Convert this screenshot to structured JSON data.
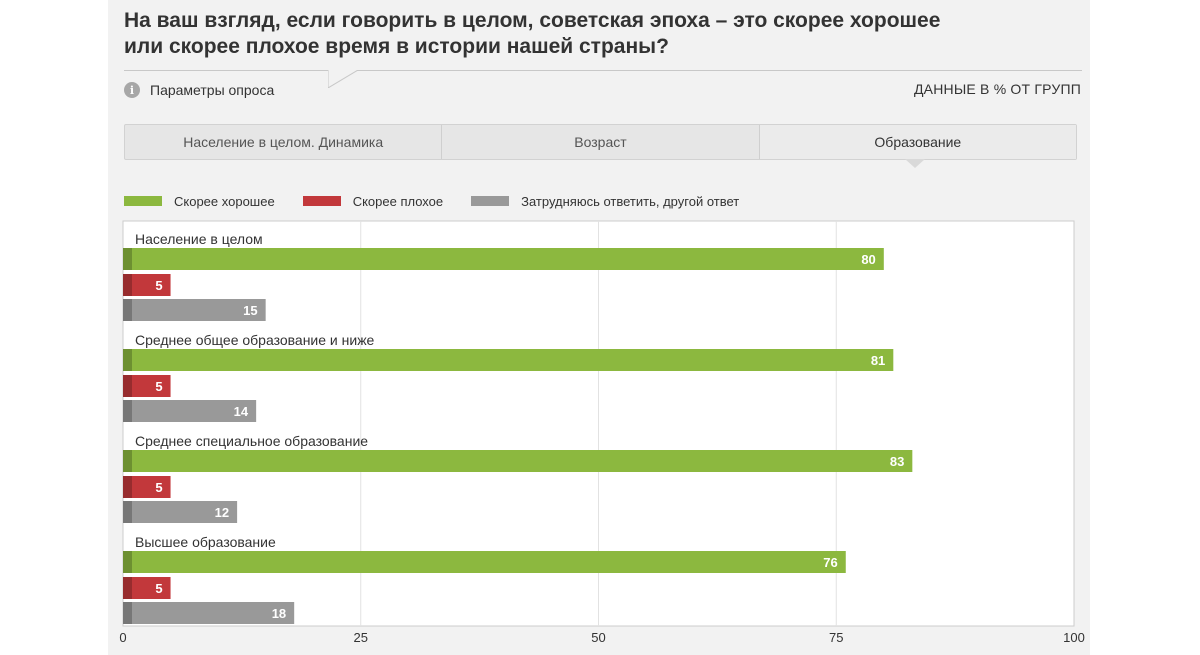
{
  "header": {
    "title_line1": "На ваш взгляд, если говорить в целом, советская эпоха – это скорее хорошее",
    "title_line2": "или скорее плохое время в истории нашей страны?",
    "params_label": "Параметры опроса",
    "info_glyph": "i",
    "data_note": "ДАННЫЕ В % ОТ ГРУПП"
  },
  "tabs": [
    {
      "label": "Население в целом. Динамика",
      "active": false
    },
    {
      "label": "Возраст",
      "active": false
    },
    {
      "label": "Образование",
      "active": true
    }
  ],
  "chart_data": {
    "type": "bar",
    "orientation": "horizontal",
    "title": "На ваш взгляд, если говорить в целом, советская эпоха – это скорее хорошее или скорее плохое время в истории нашей страны?",
    "unit": "ДАННЫЕ В % ОТ ГРУПП",
    "categories": [
      "Население в целом",
      "Среднее общее образование и ниже",
      "Среднее специальное образование",
      "Высшее образование"
    ],
    "series": [
      {
        "name": "Скорее хорошее",
        "color": "#8cb83f",
        "values": [
          80,
          81,
          83,
          76
        ]
      },
      {
        "name": "Скорее плохое",
        "color": "#c2383b",
        "values": [
          5,
          5,
          5,
          5
        ]
      },
      {
        "name": "Затрудняюсь ответить, другой ответ",
        "color": "#999999",
        "values": [
          15,
          14,
          12,
          18
        ]
      }
    ],
    "xlim": [
      0,
      100
    ],
    "x_ticks": [
      "0",
      "25",
      "50",
      "75",
      "100"
    ],
    "grid": true,
    "legend_position": "top-left"
  }
}
